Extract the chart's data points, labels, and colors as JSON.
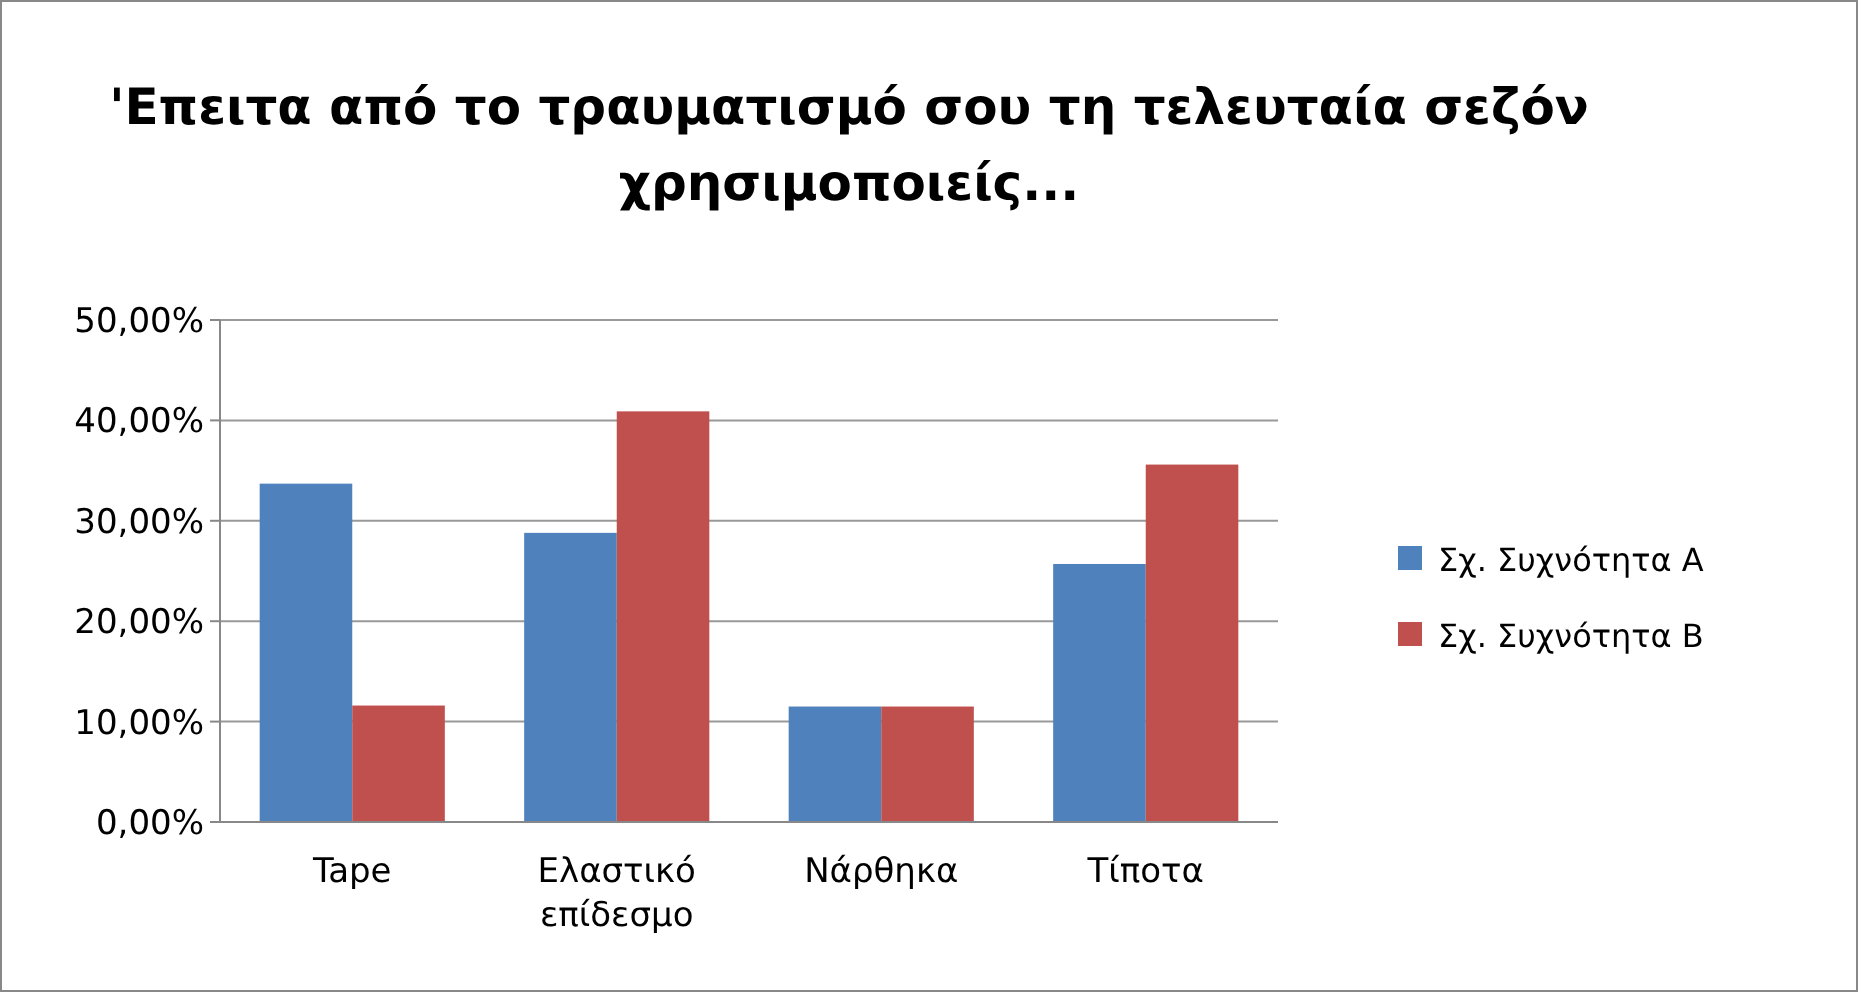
{
  "chart_data": {
    "type": "bar",
    "title": "'Επειτα από το τραυματισμό  σου τη τελευταία σεζόν χρησιμοποιείς...",
    "categories": [
      "Tape",
      "Ελαστικό επίδεσμο",
      "Νάρθηκα",
      "Τίποτα"
    ],
    "series": [
      {
        "name": "Σχ. Συχνότητα A",
        "color": "#4f81bd",
        "values": [
          33.7,
          28.8,
          11.5,
          25.7
        ]
      },
      {
        "name": "Σχ. Συχνότητα B",
        "color": "#c0504d",
        "values": [
          11.6,
          40.9,
          11.5,
          35.6
        ]
      }
    ],
    "ylim": [
      0,
      50
    ],
    "yticks": [
      {
        "value": 0,
        "label": "0,00%"
      },
      {
        "value": 10,
        "label": "10,00%"
      },
      {
        "value": 20,
        "label": "20,00%"
      },
      {
        "value": 30,
        "label": "30,00%"
      },
      {
        "value": 40,
        "label": "40,00%"
      },
      {
        "value": 50,
        "label": "50,00%"
      }
    ],
    "grid": "y",
    "legend": "right"
  }
}
